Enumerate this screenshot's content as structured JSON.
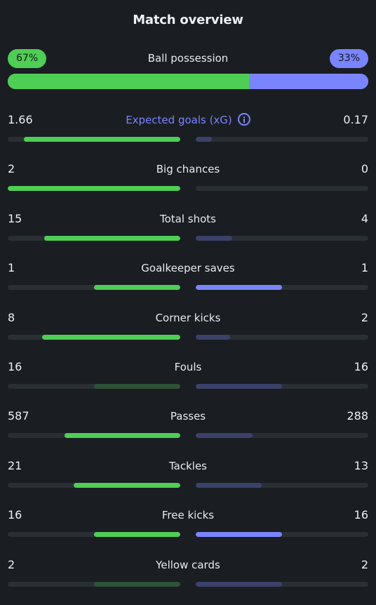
{
  "header": {
    "title": "Match overview"
  },
  "colors": {
    "home": "#4fce55",
    "away": "#7a84ff",
    "home_dim": "#2e5236",
    "away_dim": "#3c416a",
    "track": "#2a2f34"
  },
  "possession": {
    "label": "Ball possession",
    "home_label": "67%",
    "away_label": "33%",
    "home": 67,
    "away": 33
  },
  "stats": [
    {
      "label": "Expected goals (xG)",
      "home": "1.66",
      "away": "0.17",
      "home_n": 1.66,
      "away_n": 0.17,
      "info": true,
      "icon": "info-icon"
    },
    {
      "label": "Big chances",
      "home": "2",
      "away": "0",
      "home_n": 2,
      "away_n": 0
    },
    {
      "label": "Total shots",
      "home": "15",
      "away": "4",
      "home_n": 15,
      "away_n": 4
    },
    {
      "label": "Goalkeeper saves",
      "home": "1",
      "away": "1",
      "home_n": 1,
      "away_n": 1,
      "highlight_both": true
    },
    {
      "label": "Corner kicks",
      "home": "8",
      "away": "2",
      "home_n": 8,
      "away_n": 2
    },
    {
      "label": "Fouls",
      "home": "16",
      "away": "16",
      "home_n": 16,
      "away_n": 16
    },
    {
      "label": "Passes",
      "home": "587",
      "away": "288",
      "home_n": 587,
      "away_n": 288
    },
    {
      "label": "Tackles",
      "home": "21",
      "away": "13",
      "home_n": 21,
      "away_n": 13
    },
    {
      "label": "Free kicks",
      "home": "16",
      "away": "16",
      "home_n": 16,
      "away_n": 16,
      "highlight_both": true
    },
    {
      "label": "Yellow cards",
      "home": "2",
      "away": "2",
      "home_n": 2,
      "away_n": 2
    }
  ]
}
